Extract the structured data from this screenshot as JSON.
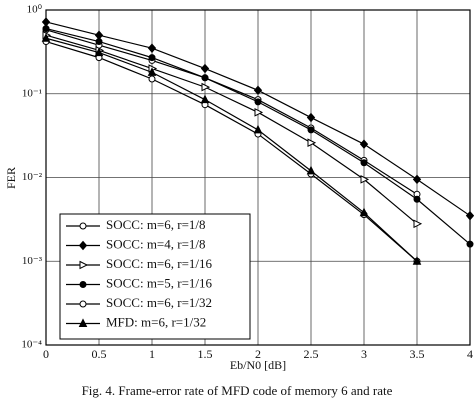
{
  "chart_data": {
    "type": "line",
    "title": null,
    "xlabel": "Eb/N0 [dB]",
    "ylabel": "FER",
    "caption": "Fig. 4.  Frame-error rate of MFD code of memory 6 and rate",
    "x": [
      0,
      0.5,
      1,
      1.5,
      2,
      2.5,
      3,
      3.5,
      4
    ],
    "xlim": [
      0,
      4
    ],
    "xticks": [
      0,
      0.5,
      1,
      1.5,
      2,
      2.5,
      3,
      3.5,
      4
    ],
    "ylim": [
      0.0001,
      1
    ],
    "yscale": "log",
    "yticks": [
      {
        "value": 1,
        "label": "10⁰"
      },
      {
        "value": 0.1,
        "label": "10⁻¹"
      },
      {
        "value": 0.01,
        "label": "10⁻²"
      },
      {
        "value": 0.001,
        "label": "10⁻³"
      },
      {
        "value": 0.0001,
        "label": "10⁻⁴"
      }
    ],
    "grid": true,
    "legend": "lower left",
    "series": [
      {
        "name": "SOCC: m=6, r=1/8",
        "color": "#000000",
        "marker": "circle-open",
        "values": [
          0.58,
          0.38,
          0.25,
          0.155,
          0.085,
          0.039,
          0.016,
          0.0063,
          null
        ]
      },
      {
        "name": "SOCC: m=4, r=1/8",
        "color": "#000000",
        "marker": "diamond",
        "values": [
          0.72,
          0.5,
          0.35,
          0.2,
          0.11,
          0.052,
          0.025,
          0.0095,
          0.0035
        ]
      },
      {
        "name": "SOCC: m=6, r=1/16",
        "color": "#000000",
        "marker": "triangle-open",
        "values": [
          0.5,
          0.33,
          0.2,
          0.12,
          0.06,
          0.026,
          0.0095,
          0.0028,
          null
        ]
      },
      {
        "name": "SOCC: m=5, r=1/16",
        "color": "#000000",
        "marker": "circle",
        "values": [
          0.6,
          0.42,
          0.27,
          0.155,
          0.08,
          0.037,
          0.015,
          0.0055,
          0.0016
        ]
      },
      {
        "name": "SOCC: m=6, r=1/32",
        "color": "#000000",
        "marker": "square-open",
        "values": [
          0.42,
          0.27,
          0.15,
          0.074,
          0.033,
          0.011,
          0.0036,
          0.001,
          null
        ]
      },
      {
        "name": "MFD: m=6, r=1/32",
        "color": "#000000",
        "marker": "star",
        "values": [
          0.46,
          0.31,
          0.18,
          0.085,
          0.037,
          0.012,
          0.0038,
          0.001,
          null
        ]
      }
    ]
  }
}
